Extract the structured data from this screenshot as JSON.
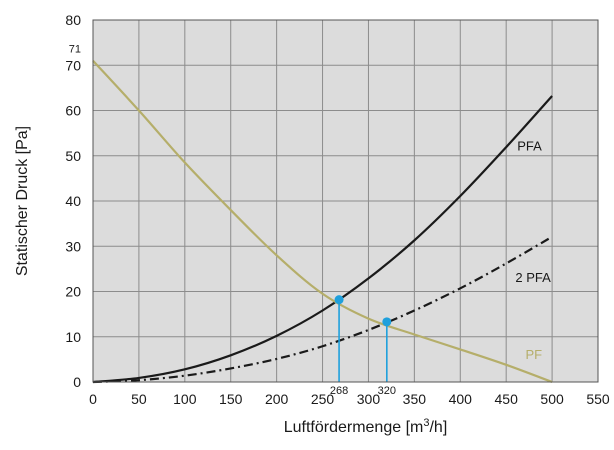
{
  "chart_data": {
    "type": "line",
    "xlabel": "Luftfördermenge [m3/h]",
    "xlabel_parts": {
      "base": "Luftfördermenge [m",
      "sup": "3",
      "tail": "/h]"
    },
    "ylabel": "Statischer Druck [Pa]",
    "xlim": [
      0,
      550
    ],
    "ylim": [
      0,
      80
    ],
    "x_ticks": [
      0,
      50,
      100,
      150,
      200,
      250,
      300,
      350,
      400,
      450,
      500,
      550
    ],
    "y_ticks": [
      0,
      10,
      20,
      30,
      40,
      50,
      60,
      70,
      80
    ],
    "extra_y_label": "71",
    "extra_y_label_value": 71,
    "grid": true,
    "plot_area_color": "#dcdcdc",
    "grid_color": "#8c8c8c",
    "series": [
      {
        "name": "PFA",
        "color": "#1a1a1a",
        "style": "solid",
        "x": [
          0,
          50,
          100,
          150,
          200,
          250,
          300,
          350,
          400,
          450,
          500
        ],
        "y": [
          0,
          0.9,
          2.8,
          5.9,
          10.2,
          15.8,
          22.9,
          31.3,
          41.1,
          51.9,
          63.2
        ]
      },
      {
        "name": "2 PFA",
        "color": "#1a1a1a",
        "style": "dashdot",
        "x": [
          0,
          50,
          100,
          150,
          200,
          250,
          300,
          350,
          400,
          450,
          500
        ],
        "y": [
          0,
          0.4,
          1.4,
          3.0,
          5.1,
          7.9,
          11.5,
          15.8,
          20.7,
          26.2,
          32.1
        ]
      },
      {
        "name": "PF",
        "color": "#b5ae6a",
        "style": "solid",
        "x": [
          0,
          50,
          100,
          150,
          200,
          250,
          300,
          350,
          400,
          450,
          500
        ],
        "y": [
          71,
          60,
          48.5,
          38,
          28,
          19.5,
          14,
          10.5,
          7.2,
          3.8,
          0
        ]
      }
    ],
    "series_labels": [
      {
        "text": "PFA",
        "x": 462,
        "y": 52,
        "color": "#1a1a1a"
      },
      {
        "text": "2 PFA",
        "x": 460,
        "y": 23,
        "color": "#1a1a1a"
      },
      {
        "text": "PF",
        "x": 471,
        "y": 6,
        "color": "#b5ae6a"
      }
    ],
    "operating_points": [
      {
        "x": 268,
        "y": 18.2,
        "label": "268",
        "color": "#1fa0dc"
      },
      {
        "x": 320,
        "y": 13.3,
        "label": "320",
        "color": "#1fa0dc"
      }
    ]
  }
}
